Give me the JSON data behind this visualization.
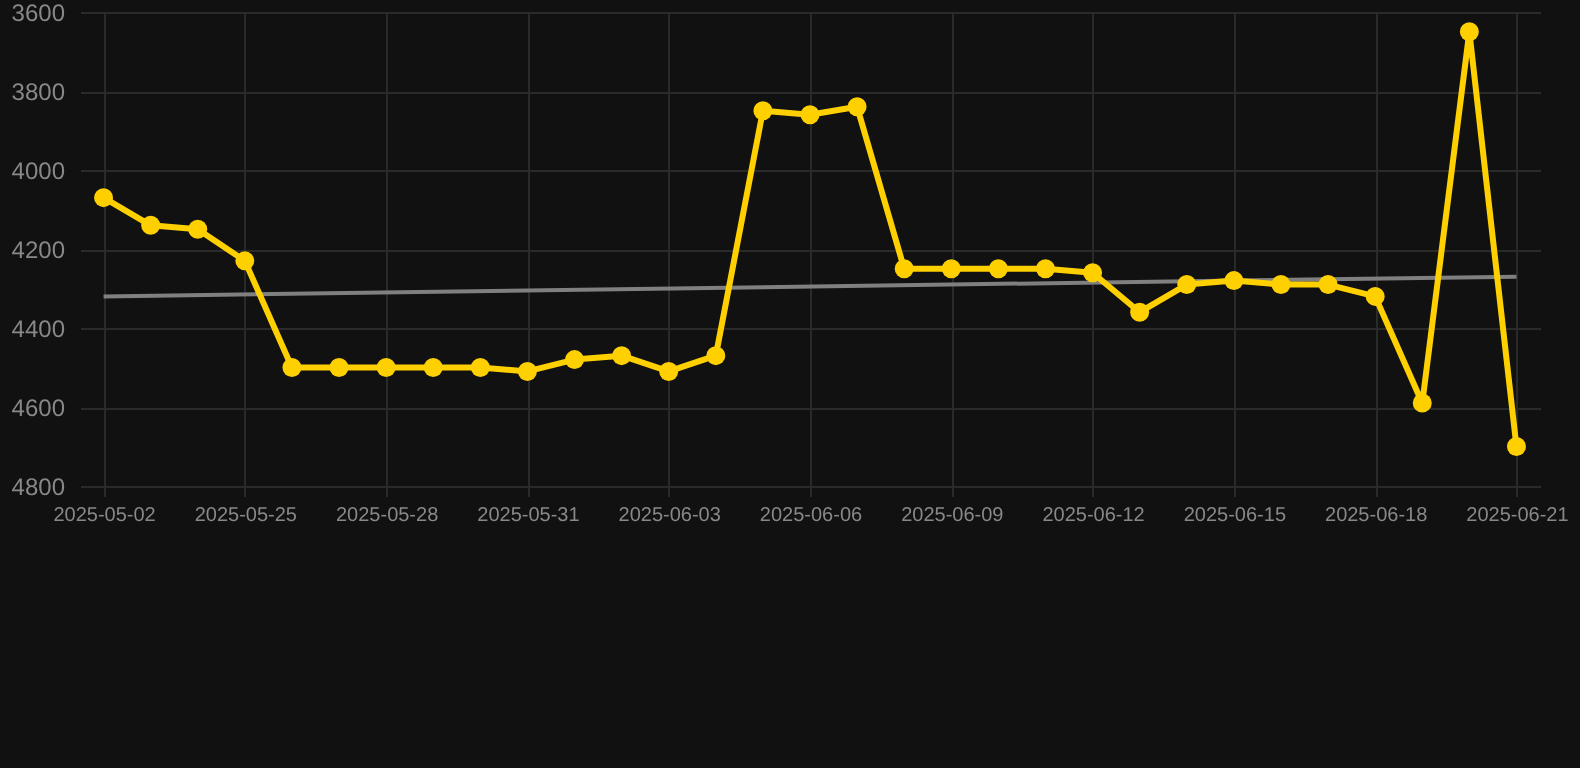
{
  "chart_data": {
    "type": "line",
    "categories": [
      "2025-05-02",
      null,
      null,
      "2025-05-25",
      null,
      null,
      "2025-05-28",
      null,
      null,
      "2025-05-31",
      null,
      null,
      "2025-06-03",
      null,
      null,
      "2025-06-06",
      null,
      null,
      "2025-06-09",
      null,
      null,
      "2025-06-12",
      null,
      null,
      "2025-06-15",
      null,
      null,
      "2025-06-18",
      null,
      null,
      "2025-06-21"
    ],
    "series": [
      {
        "color": "#ffd000",
        "marker": "circle",
        "values": [
          4070,
          4140,
          4150,
          4230,
          4500,
          4500,
          4500,
          4500,
          4500,
          4510,
          4480,
          4470,
          4510,
          4470,
          3850,
          3860,
          3840,
          4250,
          4250,
          4250,
          4250,
          4260,
          4360,
          4290,
          4280,
          4290,
          4290,
          4320,
          4590,
          3650,
          4700
        ]
      },
      {
        "type": "line",
        "color": "#808080",
        "marker": "none",
        "values": [
          4320,
          null,
          null,
          null,
          null,
          null,
          null,
          null,
          null,
          null,
          null,
          null,
          null,
          null,
          null,
          null,
          null,
          null,
          null,
          null,
          null,
          null,
          null,
          null,
          null,
          null,
          null,
          null,
          null,
          null,
          4270
        ]
      }
    ],
    "ylim": [
      4800,
      3600
    ],
    "yticks": [
      3600,
      3800,
      4000,
      4200,
      4400,
      4600,
      4800
    ],
    "grid": true
  }
}
